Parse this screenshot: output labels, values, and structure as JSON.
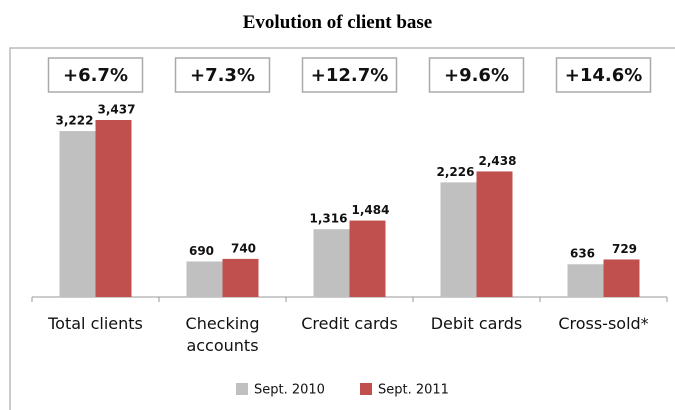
{
  "chart_data": {
    "type": "bar",
    "title": "Evolution of client base",
    "categories": [
      "Total clients",
      "Checking accounts",
      "Credit cards",
      "Debit cards",
      "Cross-sold*"
    ],
    "annotations": [
      "+6.7%",
      "+7.3%",
      "+12.7%",
      "+9.6%",
      "+14.6%"
    ],
    "series": [
      {
        "name": "Sept. 2010",
        "color": "#c0c0c0",
        "values": [
          3222,
          690,
          1316,
          2226,
          636
        ],
        "value_labels": [
          "3,222",
          "690",
          "1,316",
          "2,226",
          "636"
        ]
      },
      {
        "name": "Sept. 2011",
        "color": "#c0504d",
        "values": [
          3437,
          740,
          1484,
          2438,
          729
        ],
        "value_labels": [
          "3,437",
          "740",
          "1,484",
          "2,438",
          "729"
        ]
      }
    ],
    "legend": "bottom"
  }
}
